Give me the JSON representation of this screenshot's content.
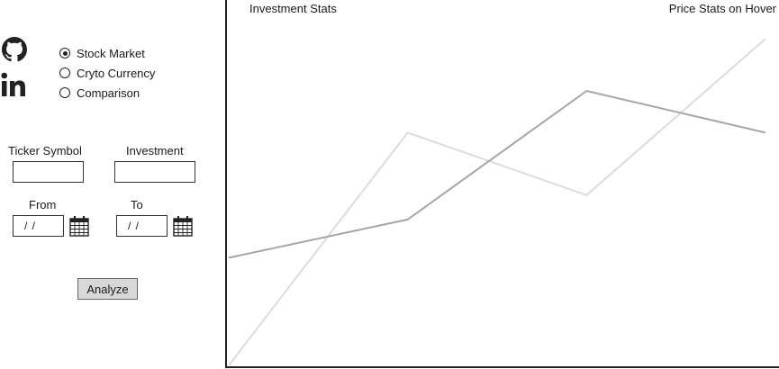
{
  "social": {
    "github_icon": "github-icon",
    "linkedin_icon": "linkedin-icon"
  },
  "market_options": [
    {
      "label": "Stock Market",
      "selected": true
    },
    {
      "label": "Cryto Currency",
      "selected": false
    },
    {
      "label": "Comparison",
      "selected": false
    }
  ],
  "form": {
    "ticker_label": "Ticker Symbol",
    "ticker_value": "",
    "investment_label": "Investment",
    "investment_value": "",
    "from_label": "From",
    "from_value": "/ /",
    "to_label": "To",
    "to_value": "/ /",
    "calendar_icon": "calendar-icon",
    "analyze_label": "Analyze"
  },
  "panels": {
    "investment_stats_title": "Investment Stats",
    "price_stats_title": "Price Stats on Hover"
  },
  "chart_data": {
    "type": "line",
    "x": [
      0,
      1,
      2,
      3
    ],
    "series": [
      {
        "values": [
          0.0,
          0.67,
          0.49,
          0.94
        ],
        "color": "#dcdcdc"
      },
      {
        "values": [
          0.31,
          0.42,
          0.79,
          0.67
        ],
        "color": "#a6a6a6"
      }
    ],
    "ylim": [
      0,
      1
    ],
    "grid": false,
    "legend": "none"
  }
}
